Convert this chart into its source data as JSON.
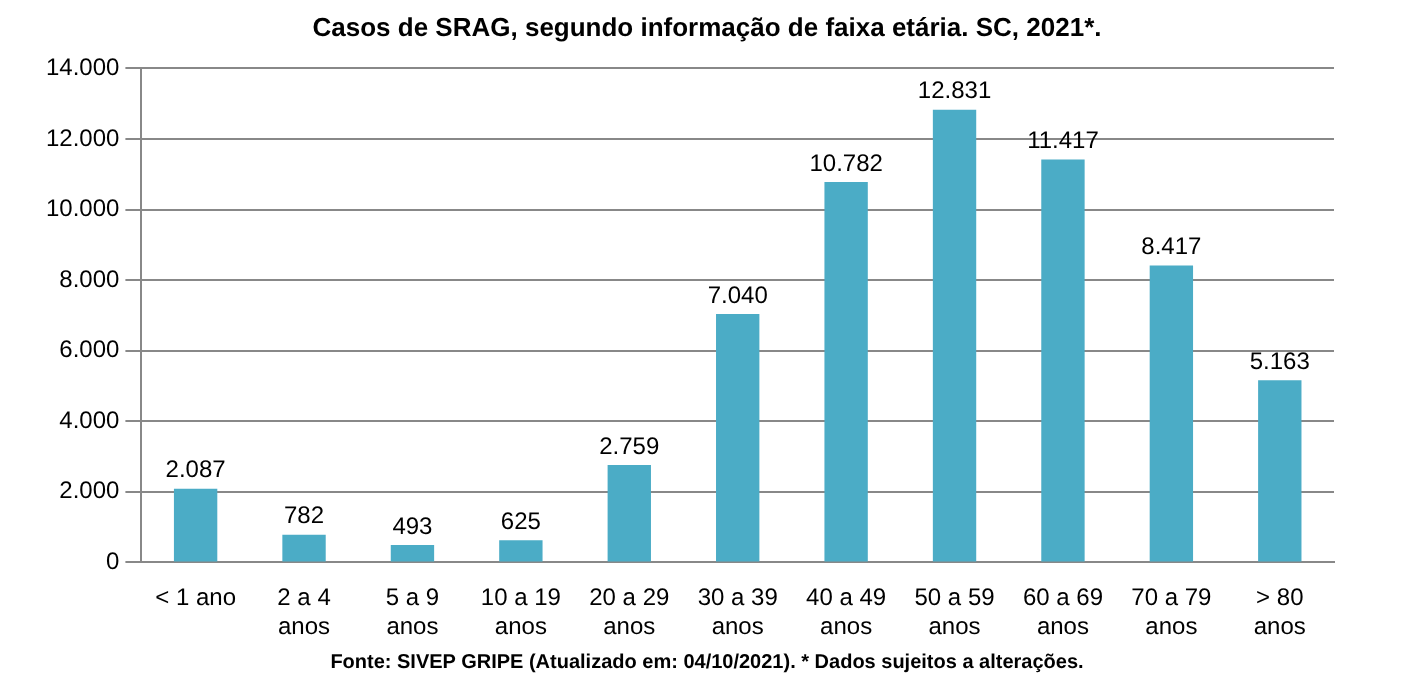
{
  "chart_data": {
    "type": "bar",
    "title": "Casos de SRAG, segundo informação de faixa etária. SC, 2021*.",
    "categories": [
      "< 1 ano",
      "2 a 4 anos",
      "5 a 9 anos",
      "10 a 19 anos",
      "20 a 29 anos",
      "30 a 39 anos",
      "40 a 49 anos",
      "50 a 59 anos",
      "60 a 69 anos",
      "70 a 79 anos",
      "> 80 anos"
    ],
    "values": [
      2087,
      782,
      493,
      625,
      2759,
      7040,
      10782,
      12831,
      11417,
      8417,
      5163
    ],
    "value_labels": [
      "2.087",
      "782",
      "493",
      "625",
      "2.759",
      "7.040",
      "10.782",
      "12.831",
      "11.417",
      "8.417",
      "5.163"
    ],
    "color": "#4bacc6",
    "ylim": [
      0,
      14000
    ],
    "yticks": [
      {
        "value": 0,
        "label": "0"
      },
      {
        "value": 2000,
        "label": "2.000"
      },
      {
        "value": 4000,
        "label": "4.000"
      },
      {
        "value": 6000,
        "label": "6.000"
      },
      {
        "value": 8000,
        "label": "8.000"
      },
      {
        "value": 10000,
        "label": "10.000"
      },
      {
        "value": 12000,
        "label": "12.000"
      },
      {
        "value": 14000,
        "label": "14.000"
      }
    ],
    "grid": "y",
    "annotations": [
      "Fonte: SIVEP GRIPE (Atualizado em: 04/10/2021). * Dados sujeitos a alterações."
    ]
  }
}
